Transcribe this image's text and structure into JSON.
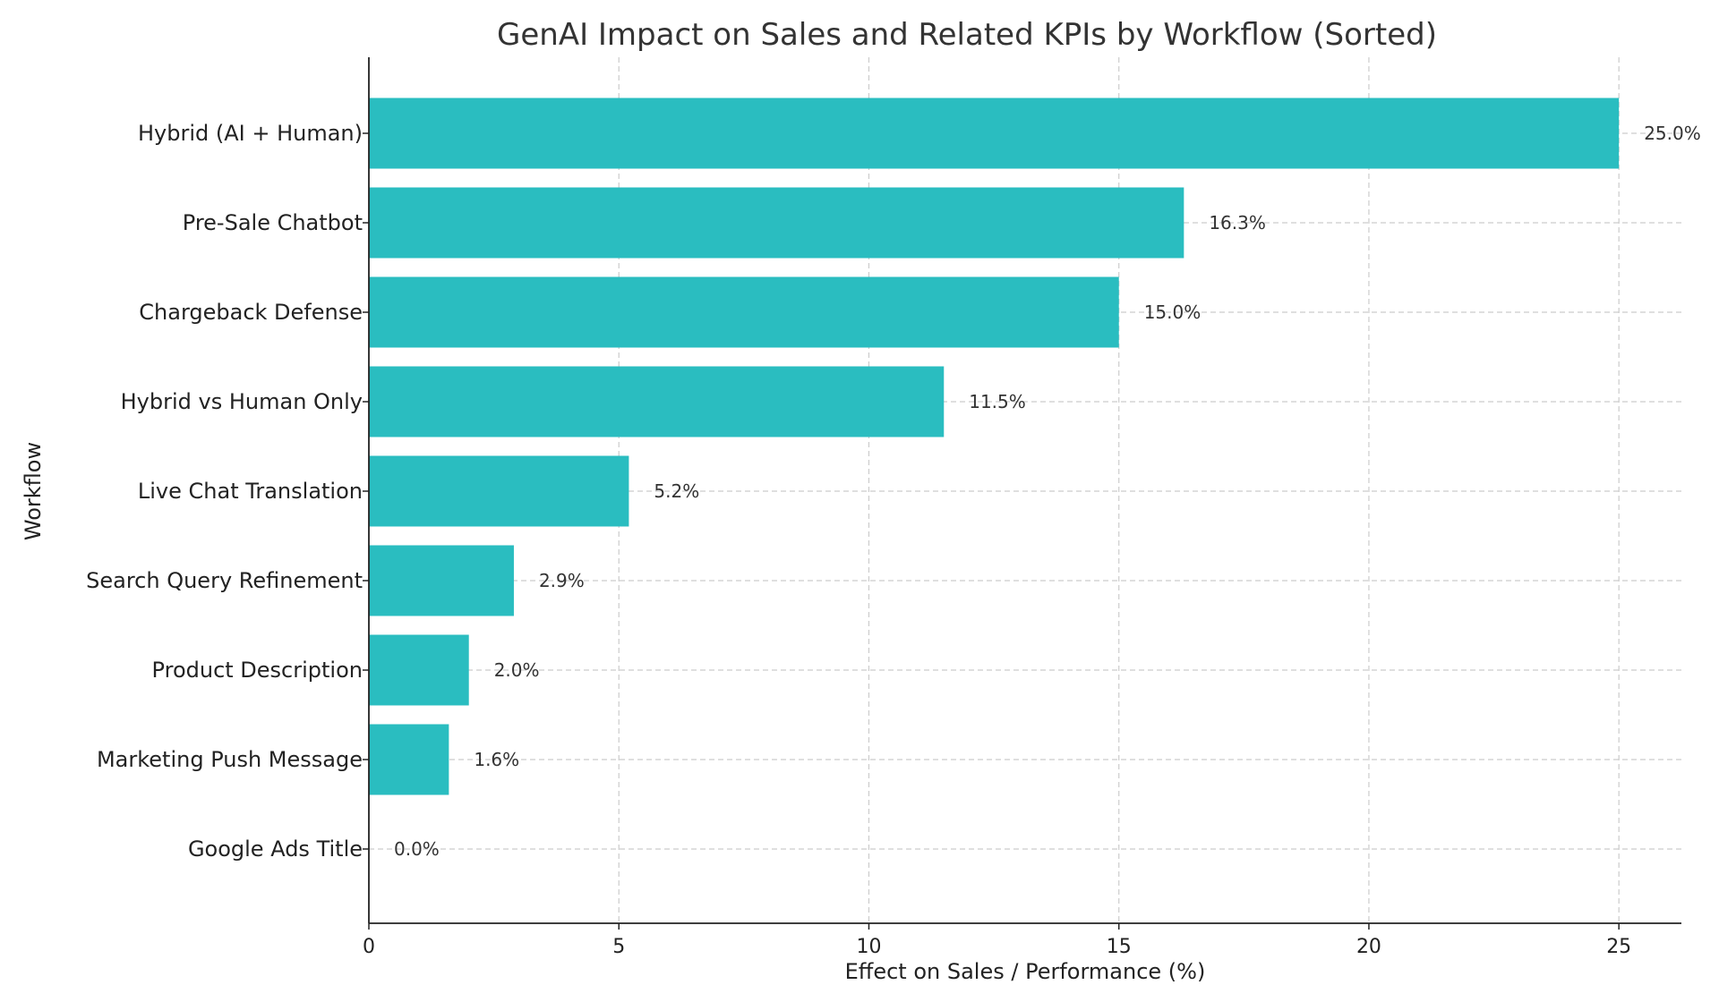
{
  "chart_data": {
    "type": "bar",
    "orientation": "horizontal",
    "title": "GenAI Impact on Sales and Related KPIs by Workflow (Sorted)",
    "xlabel": "Effect on Sales / Performance (%)",
    "ylabel": "Workflow",
    "xlim": [
      0,
      26.25
    ],
    "xticks": [
      0,
      5,
      10,
      15,
      20,
      25
    ],
    "grid": true,
    "bar_color": "#2abdc0",
    "categories": [
      "Hybrid (AI + Human)",
      "Pre-Sale Chatbot",
      "Chargeback Defense",
      "Hybrid vs Human Only",
      "Live Chat Translation",
      "Search Query Refinement",
      "Product Description",
      "Marketing Push Message",
      "Google Ads Title"
    ],
    "values": [
      25.0,
      16.3,
      15.0,
      11.5,
      5.2,
      2.9,
      2.0,
      1.6,
      0.0
    ],
    "data_labels": [
      "25.0%",
      "16.3%",
      "15.0%",
      "11.5%",
      "5.2%",
      "2.9%",
      "2.0%",
      "1.6%",
      "0.0%"
    ]
  }
}
